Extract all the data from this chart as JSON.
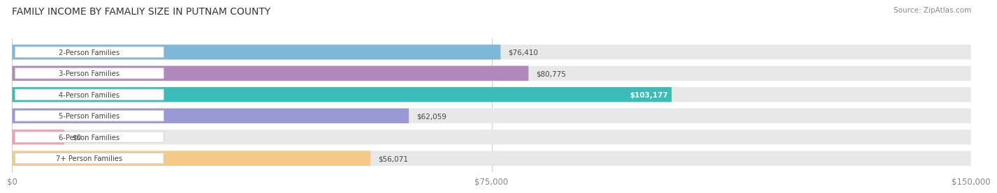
{
  "title": "FAMILY INCOME BY FAMALIY SIZE IN PUTNAM COUNTY",
  "source": "Source: ZipAtlas.com",
  "categories": [
    "2-Person Families",
    "3-Person Families",
    "4-Person Families",
    "5-Person Families",
    "6-Person Families",
    "7+ Person Families"
  ],
  "values": [
    76410,
    80775,
    103177,
    62059,
    0,
    56071
  ],
  "bar_colors": [
    "#7eb8d8",
    "#b088bb",
    "#3abcbb",
    "#9898d4",
    "#f29eb5",
    "#f5c98a"
  ],
  "label_text_colors": [
    "#444444",
    "#444444",
    "#ffffff",
    "#444444",
    "#444444",
    "#444444"
  ],
  "xlim": [
    0,
    150000
  ],
  "xticks": [
    0,
    75000,
    150000
  ],
  "xtick_labels": [
    "$0",
    "$75,000",
    "$150,000"
  ],
  "background_color": "#ffffff",
  "bar_bg_color": "#e8e8e8",
  "value_labels": [
    "$76,410",
    "$80,775",
    "$103,177",
    "$62,059",
    "$0",
    "$56,071"
  ],
  "value_inside": [
    false,
    false,
    true,
    false,
    false,
    false
  ]
}
